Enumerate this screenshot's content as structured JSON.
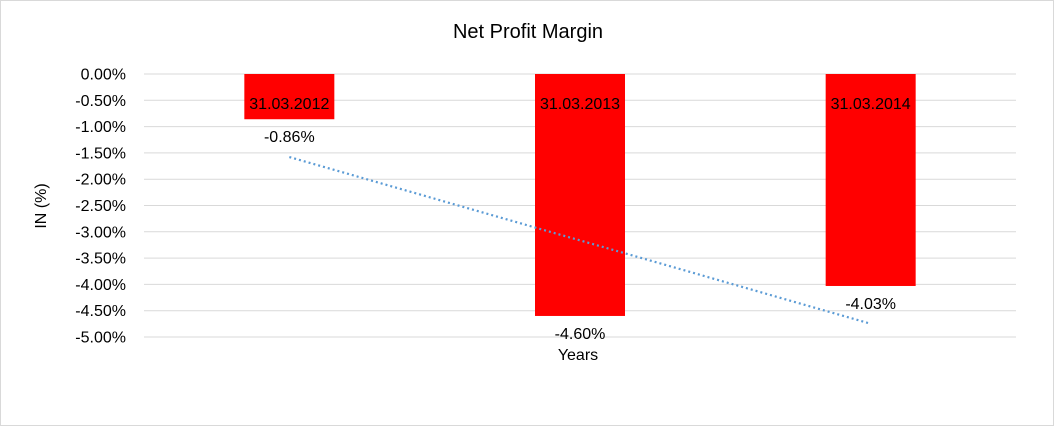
{
  "chart_data": {
    "type": "bar",
    "title": "Net Profit Margin",
    "xlabel": "Years",
    "ylabel": "IN (%)",
    "categories": [
      "31.03.2012",
      "31.03.2013",
      "31.03.2014"
    ],
    "series": [
      {
        "values": [
          -0.86,
          -4.6,
          -4.03
        ],
        "data_labels": [
          "-0.86%",
          "-4.60%",
          "-4.03%"
        ],
        "color": "#ff0000"
      }
    ],
    "trendline": {
      "type": "linear",
      "style": "dotted",
      "color": "#5b9bd5"
    },
    "ylim": [
      -5,
      0
    ],
    "ytick_step": 0.5,
    "ytick_labels": [
      "0.00%",
      "-0.50%",
      "-1.00%",
      "-1.50%",
      "-2.00%",
      "-2.50%",
      "-3.00%",
      "-3.50%",
      "-4.00%",
      "-4.50%",
      "-5.00%"
    ],
    "grid": true,
    "legend": "none"
  }
}
